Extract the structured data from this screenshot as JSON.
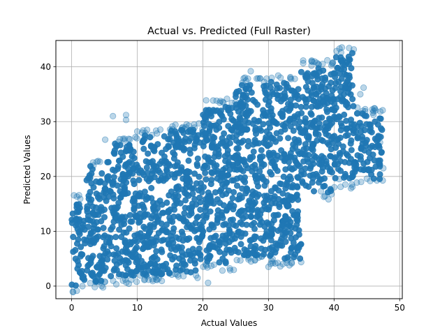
{
  "chart_data": {
    "type": "scatter",
    "title": "Actual vs. Predicted (Full Raster)",
    "xlabel": "Actual Values",
    "ylabel": "Predicted Values",
    "xlim": [
      -2.4,
      50.4
    ],
    "ylim": [
      -2.3,
      44.8
    ],
    "xticks": [
      0,
      10,
      20,
      30,
      40,
      50
    ],
    "yticks": [
      0,
      10,
      20,
      30,
      40
    ],
    "grid": true,
    "marker_color": "#1f77b4",
    "marker_alpha": 0.3,
    "series": [
      {
        "name": "",
        "trend_bands": [
          {
            "x_from": 0.0,
            "x_to": 2.0,
            "y_min": 0.0,
            "y_max": 15.5
          },
          {
            "x_from": 2.0,
            "x_to": 5.0,
            "y_min": 0.8,
            "y_max": 22.0
          },
          {
            "x_from": 5.0,
            "x_to": 10.0,
            "y_min": 1.5,
            "y_max": 26.0
          },
          {
            "x_from": 10.0,
            "x_to": 15.0,
            "y_min": 2.0,
            "y_max": 27.5
          },
          {
            "x_from": 15.0,
            "x_to": 20.0,
            "y_min": 2.5,
            "y_max": 28.5
          },
          {
            "x_from": 20.0,
            "x_to": 25.0,
            "y_min": 4.0,
            "y_max": 33.0
          },
          {
            "x_from": 25.0,
            "x_to": 30.0,
            "y_min": 5.5,
            "y_max": 37.0
          },
          {
            "x_from": 30.0,
            "x_to": 35.0,
            "y_min": 5.0,
            "y_max": 37.5
          },
          {
            "x_from": 35.0,
            "x_to": 40.0,
            "y_min": 17.0,
            "y_max": 40.0
          },
          {
            "x_from": 40.0,
            "x_to": 43.0,
            "y_min": 19.0,
            "y_max": 42.5
          },
          {
            "x_from": 43.0,
            "x_to": 47.5,
            "y_min": 19.5,
            "y_max": 31.5
          }
        ],
        "outliers": [
          {
            "x": 6.3,
            "y": 31.0
          },
          {
            "x": 8.3,
            "y": 31.2
          },
          {
            "x": 8.3,
            "y": 30.3
          },
          {
            "x": 27.3,
            "y": 39.2
          },
          {
            "x": 21.0,
            "y": 32.0
          },
          {
            "x": 20.8,
            "y": 0.6
          },
          {
            "x": 19.2,
            "y": 1.5
          },
          {
            "x": 31.8,
            "y": 3.6
          },
          {
            "x": 33.2,
            "y": 3.8
          },
          {
            "x": 30.0,
            "y": 3.5
          },
          {
            "x": 27.0,
            "y": 5.2
          },
          {
            "x": 7.2,
            "y": 1.8
          },
          {
            "x": 12.8,
            "y": 2.3
          },
          {
            "x": 45.0,
            "y": 19.6
          },
          {
            "x": 40.8,
            "y": 19.5
          },
          {
            "x": 38.0,
            "y": 17.3
          },
          {
            "x": 42.0,
            "y": 41.0
          },
          {
            "x": 44.5,
            "y": 36.2
          },
          {
            "x": 44.0,
            "y": 35.0
          },
          {
            "x": 47.0,
            "y": 26.2
          },
          {
            "x": 47.5,
            "y": 21.5
          },
          {
            "x": 44.2,
            "y": 31.5
          },
          {
            "x": 46.0,
            "y": 31.2
          },
          {
            "x": 10.0,
            "y": 28.2
          },
          {
            "x": 11.5,
            "y": 28.5
          },
          {
            "x": 16.8,
            "y": 28.8
          }
        ]
      }
    ]
  }
}
